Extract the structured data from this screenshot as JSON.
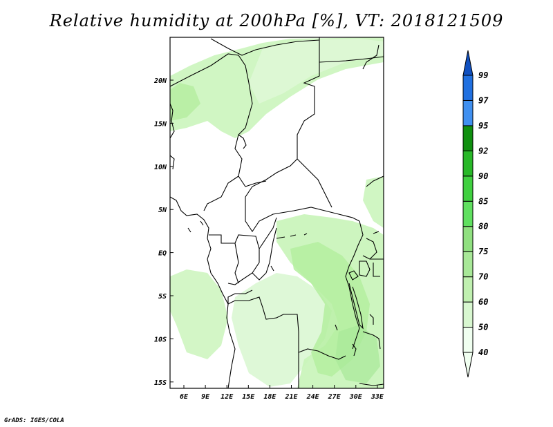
{
  "title": "Relative humidity at 200hPa [%], VT: 2018121509",
  "footer": "GrADS: IGES/COLA",
  "map": {
    "lon_labels": [
      "6E",
      "9E",
      "12E",
      "15E",
      "18E",
      "21E",
      "24E",
      "27E",
      "30E",
      "33E"
    ],
    "lat_labels": [
      "20N",
      "15N",
      "10N",
      "5N",
      "EQ",
      "5S",
      "10S",
      "15S"
    ]
  },
  "colorbar": {
    "levels": [
      "40",
      "50",
      "60",
      "70",
      "75",
      "80",
      "85",
      "90",
      "92",
      "95",
      "97",
      "99"
    ],
    "colors": [
      "#f0fff0",
      "#d8f7d0",
      "#c0f0b0",
      "#a8e898",
      "#90e080",
      "#60e060",
      "#40d040",
      "#28b828",
      "#109010",
      "#4090f0",
      "#2070e0",
      "#1050c0"
    ]
  },
  "colors": {
    "light_green": "#c8f4b8",
    "pale_green": "#e2fadc",
    "border": "#000000"
  }
}
